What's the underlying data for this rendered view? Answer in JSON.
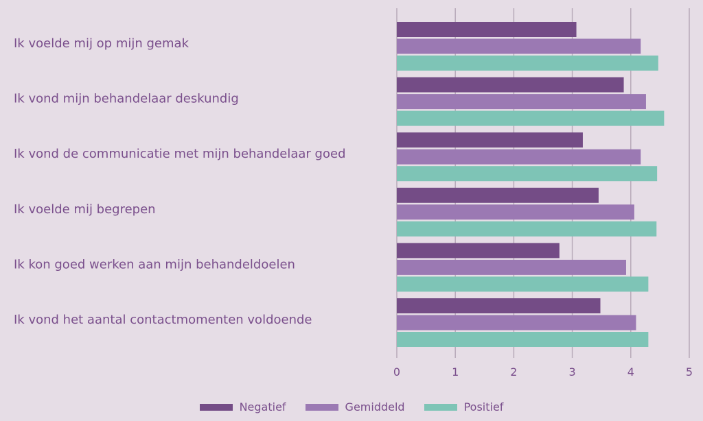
{
  "chart_data": {
    "type": "bar",
    "orientation": "horizontal",
    "title": "",
    "xlabel": "",
    "ylabel": "",
    "xlim": [
      0,
      5
    ],
    "x_ticks": [
      "0",
      "1",
      "2",
      "3",
      "4",
      "5"
    ],
    "grid": true,
    "legend_position": "bottom-center",
    "categories": [
      "Ik voelde mij op mijn gemak",
      "Ik vond mijn behandelaar deskundig",
      "Ik vond de communicatie met mijn behandelaar goed",
      "Ik voelde mij begrepen",
      "Ik kon goed werken aan mijn behandeldoelen",
      "Ik vond het aantal contactmomenten voldoende"
    ],
    "series": [
      {
        "name": "Negatief",
        "color": "#744c86",
        "values": [
          3.07,
          3.88,
          3.18,
          3.45,
          2.78,
          3.48
        ]
      },
      {
        "name": "Gemiddeld",
        "color": "#9b79b3",
        "values": [
          4.17,
          4.26,
          4.17,
          4.06,
          3.92,
          4.09
        ]
      },
      {
        "name": "Positief",
        "color": "#7ec4b6",
        "values": [
          4.47,
          4.57,
          4.45,
          4.44,
          4.3,
          4.3
        ]
      }
    ]
  }
}
